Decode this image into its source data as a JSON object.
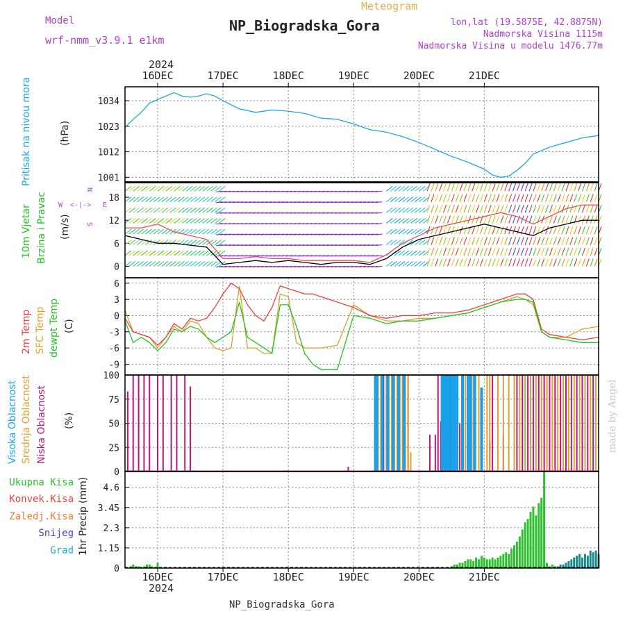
{
  "header": {
    "model_label": "Model",
    "model_name": "wrf-nmm_v3.9.1 e1km",
    "meteogram_label": "Meteogram",
    "station": "NP_Biogradska_Gora",
    "lonlat": "lon,lat (19.5875E, 42.8875N)",
    "elevation": "Nadmorska Visina 1115m",
    "model_elevation": "Nadmorska Visina u modelu 1476.77m",
    "credit": "made by Angel",
    "footer_station": "NP_Biogradska_Gora"
  },
  "colors": {
    "pressure": "#1aa7e8",
    "temp2m": "#e8413a",
    "sfc_temp": "#e0a030",
    "dewpoint": "#22c322",
    "high_cloud": "#1aa0e8",
    "mid_cloud": "#e0a030",
    "low_cloud": "#c0147a",
    "total_precip": "#2ec02e",
    "conv_precip": "#e8413a",
    "frozen_precip": "#f07a30",
    "snow": "#4040e0",
    "graupel": "#20b0c0",
    "title_purple": "#b040d0",
    "title_orange": "#e0b050"
  },
  "chart_data": [
    {
      "type": "line",
      "panel": "pressure",
      "ylabel": "Pritisak na nivou mora",
      "unit": "(hPa)",
      "x_dates": [
        "2024-12-15 12:00",
        "2024-12-21 12:00"
      ],
      "xtick_labels": [
        "16DEC",
        "17DEC",
        "18DEC",
        "19DEC",
        "20DEC",
        "21DEC"
      ],
      "year_label": "2024",
      "yticks": [
        1001,
        1012,
        1023,
        1034
      ],
      "ylim": [
        999,
        1040
      ],
      "grid": true,
      "series": [
        {
          "name": "Pritisak na nivou mora",
          "x_hours": [
            0,
            3,
            6,
            9,
            12,
            15,
            18,
            21,
            24,
            27,
            30,
            33,
            36,
            42,
            48,
            54,
            60,
            66,
            72,
            78,
            84,
            90,
            96,
            102,
            108,
            114,
            120,
            126,
            132,
            135,
            138,
            141,
            144,
            147,
            150,
            156,
            162,
            168,
            174
          ],
          "values": [
            1022.5,
            1026,
            1029,
            1033,
            1034.5,
            1036,
            1037.5,
            1036,
            1035.5,
            1036,
            1037,
            1036,
            1034,
            1030.5,
            1029,
            1030,
            1029.5,
            1028.5,
            1026.5,
            1026,
            1024,
            1021.5,
            1020.5,
            1018.5,
            1016,
            1013,
            1010,
            1007.5,
            1004.5,
            1002,
            1001,
            1001.5,
            1004,
            1007,
            1011,
            1014,
            1016,
            1018,
            1019
          ]
        }
      ]
    },
    {
      "type": "line",
      "panel": "wind",
      "ylabel": "10m Vjetar Brzina i Pravac",
      "unit": "(m/s)",
      "compass_labels": [
        "W",
        "<-|->",
        "E",
        "N",
        "S"
      ],
      "yticks": [
        0,
        6,
        12,
        18
      ],
      "ylim": [
        -3,
        22
      ],
      "grid": true,
      "series": [
        {
          "name": "speed",
          "x_hours": [
            0,
            6,
            12,
            18,
            24,
            30,
            36,
            42,
            48,
            54,
            60,
            66,
            72,
            78,
            84,
            90,
            96,
            102,
            108,
            114,
            120,
            126,
            132,
            138,
            144,
            150,
            156,
            162,
            168,
            174
          ],
          "values": [
            8,
            7,
            6,
            6,
            5.5,
            5,
            0.5,
            1,
            1.5,
            1,
            1.5,
            1,
            0.5,
            1,
            1,
            0.5,
            2,
            5,
            7,
            8,
            9,
            10,
            11,
            10,
            9,
            8,
            10,
            11,
            12,
            12
          ]
        },
        {
          "name": "gust",
          "x_hours": [
            0,
            6,
            12,
            18,
            24,
            30,
            36,
            42,
            48,
            54,
            60,
            66,
            72,
            78,
            84,
            90,
            96,
            102,
            108,
            114,
            120,
            126,
            132,
            138,
            144,
            150,
            156,
            162,
            168,
            174
          ],
          "values": [
            10,
            10,
            11,
            9,
            8,
            7,
            2,
            2,
            2.5,
            2,
            2,
            1.5,
            1.5,
            1.5,
            1.5,
            1,
            3,
            6,
            8,
            10,
            11,
            12,
            13,
            14,
            13,
            11,
            13,
            15,
            16,
            16
          ]
        }
      ]
    },
    {
      "type": "line",
      "panel": "temperature",
      "ylabel": "2m Temp / SFC Temp / dewpt Temp",
      "unit": "(C)",
      "yticks": [
        -9,
        -6,
        -3,
        0,
        3,
        6
      ],
      "ylim": [
        -11,
        7
      ],
      "grid": true,
      "series": [
        {
          "name": "2m Temp",
          "x_hours": [
            0,
            3,
            6,
            9,
            12,
            15,
            18,
            21,
            24,
            27,
            30,
            33,
            36,
            39,
            42,
            45,
            48,
            51,
            54,
            57,
            60,
            63,
            66,
            69,
            72,
            78,
            84,
            90,
            96,
            102,
            108,
            114,
            120,
            126,
            132,
            138,
            144,
            147,
            150,
            153,
            156,
            162,
            168,
            174
          ],
          "values": [
            -0.5,
            -3,
            -3.5,
            -4,
            -5.5,
            -4,
            -1.5,
            -2.5,
            -0.5,
            -1,
            -0.5,
            1.5,
            4,
            6,
            5,
            2,
            0,
            -1,
            1.5,
            5.5,
            5,
            4.5,
            4,
            4,
            3.5,
            2.5,
            1.5,
            0,
            -0.5,
            0,
            0,
            0.5,
            0.5,
            1,
            2,
            3,
            4,
            4,
            3,
            -2.5,
            -3.5,
            -4,
            -4.5,
            -4
          ]
        },
        {
          "name": "SFC Temp",
          "x_hours": [
            0,
            3,
            6,
            9,
            12,
            15,
            18,
            21,
            24,
            27,
            30,
            33,
            36,
            39,
            42,
            45,
            48,
            51,
            54,
            57,
            60,
            63,
            66,
            69,
            72,
            78,
            84,
            90,
            96,
            102,
            108,
            114,
            120,
            126,
            132,
            138,
            144,
            147,
            150,
            153,
            156,
            162,
            168,
            174
          ],
          "values": [
            1,
            -3,
            -3.5,
            -4,
            -6,
            -4,
            -2,
            -3,
            -1,
            -1.5,
            -4,
            -6,
            -6.5,
            -6,
            5.5,
            -6,
            -6,
            -7,
            -7,
            4,
            3.5,
            -5,
            -6,
            -6,
            -6,
            -5.5,
            2,
            0,
            -1,
            -1,
            -0.5,
            -0.5,
            0,
            0.5,
            1.5,
            2.5,
            3.5,
            3,
            2,
            -3,
            -4,
            -4,
            -2.5,
            -2
          ]
        },
        {
          "name": "dewpt Temp",
          "x_hours": [
            0,
            3,
            6,
            9,
            12,
            15,
            18,
            21,
            24,
            27,
            30,
            33,
            36,
            39,
            42,
            45,
            48,
            51,
            54,
            57,
            60,
            63,
            66,
            69,
            72,
            78,
            84,
            90,
            96,
            102,
            108,
            114,
            120,
            126,
            132,
            138,
            144,
            147,
            150,
            153,
            156,
            162,
            168,
            174
          ],
          "values": [
            -1,
            -5,
            -4,
            -5,
            -6.5,
            -5,
            -2.5,
            -3,
            -2,
            -2.5,
            -4,
            -5,
            -4,
            -3,
            2.5,
            -4,
            -5,
            -6,
            -7,
            2,
            2,
            -2,
            -7,
            -9,
            -10,
            -10,
            0,
            -0.5,
            -1.5,
            -1,
            -1,
            -0.5,
            0,
            0.5,
            1.5,
            2.5,
            3,
            3,
            2.5,
            -3,
            -4,
            -4.5,
            -5,
            -5
          ]
        }
      ]
    },
    {
      "type": "bar",
      "panel": "cloud",
      "ylabel": "Visoka Oblacnost / Srednja Oblacnost / Niska Oblacnost",
      "unit": "(%)",
      "yticks": [
        0,
        25,
        50,
        75,
        100
      ],
      "ylim": [
        0,
        100
      ],
      "grid": true,
      "series": [
        {
          "name": "Niska Oblacnost",
          "x_hours": [
            1,
            3,
            5,
            7,
            9,
            12,
            14,
            17,
            19,
            22,
            24,
            82,
            95,
            98,
            99,
            102,
            104,
            112,
            114,
            115,
            116,
            119,
            121,
            123,
            126,
            128,
            131,
            134,
            135,
            139,
            144,
            146,
            148,
            150,
            152,
            154,
            156,
            158,
            160,
            162,
            164,
            166,
            168,
            170,
            172
          ],
          "values": [
            83,
            100,
            100,
            100,
            100,
            100,
            100,
            100,
            100,
            100,
            88,
            5,
            100,
            100,
            100,
            100,
            100,
            38,
            38,
            100,
            52,
            38,
            100,
            50,
            38,
            100,
            32,
            32,
            100,
            38,
            100,
            100,
            100,
            100,
            100,
            100,
            100,
            100,
            100,
            100,
            100,
            100,
            100,
            100,
            100
          ]
        },
        {
          "name": "Srednja Oblacnost",
          "x_hours": [
            92,
            93,
            94,
            96,
            97,
            98,
            99,
            100,
            101,
            102,
            103,
            104,
            105,
            117,
            118,
            120,
            121,
            122,
            125,
            126,
            128,
            130,
            133,
            134,
            137,
            139,
            141,
            143,
            145,
            147,
            149,
            151,
            153,
            155,
            157,
            159,
            161,
            163,
            165,
            167,
            169,
            171,
            173
          ],
          "values": [
            100,
            100,
            100,
            100,
            100,
            100,
            100,
            100,
            100,
            100,
            100,
            100,
            20,
            100,
            100,
            100,
            100,
            100,
            100,
            100,
            100,
            100,
            100,
            100,
            100,
            100,
            100,
            100,
            100,
            100,
            100,
            100,
            100,
            100,
            100,
            100,
            100,
            100,
            100,
            100,
            100,
            100,
            100
          ]
        },
        {
          "name": "Visoka Oblacnost",
          "x_hours": [
            92,
            92.5,
            94.5,
            96.5,
            98.5,
            100.5,
            102.5,
            116.5,
            117,
            118,
            118.5,
            119.5,
            120,
            121,
            122,
            124,
            126,
            127,
            128.5,
            131
          ],
          "values": [
            100,
            100,
            100,
            100,
            100,
            100,
            100,
            100,
            100,
            100,
            100,
            100,
            100,
            100,
            100,
            100,
            100,
            100,
            100,
            87
          ]
        }
      ]
    },
    {
      "type": "bar",
      "panel": "precip",
      "ylabel": "1hr Precip",
      "unit": "(mm)",
      "legend": [
        "Ukupna Kisa",
        "Konvek.Kisa",
        "Zaledj.Kisa",
        "Snijeg",
        "Grad"
      ],
      "yticks": [
        0,
        1.15,
        2.3,
        3.45,
        4.6
      ],
      "ylim": [
        0,
        5.5
      ],
      "grid": true,
      "series": [
        {
          "name": "Ukupna Kisa",
          "x_hours": [
            2,
            3,
            4,
            5,
            7,
            8,
            9,
            10,
            12,
            120,
            121,
            122,
            123,
            124,
            125,
            126,
            127,
            128,
            129,
            130,
            131,
            132,
            133,
            134,
            135,
            136,
            137,
            138,
            139,
            140,
            141,
            142,
            143,
            144,
            145,
            146,
            147,
            148,
            149,
            150,
            151,
            152,
            153,
            154,
            155,
            156,
            157,
            158
          ],
          "values": [
            0.1,
            0.2,
            0.1,
            0.1,
            0.1,
            0.2,
            0.2,
            0.1,
            0.3,
            0.1,
            0.2,
            0.2,
            0.3,
            0.3,
            0.4,
            0.5,
            0.5,
            0.4,
            0.6,
            0.5,
            0.7,
            0.6,
            0.5,
            0.5,
            0.6,
            0.5,
            0.6,
            0.7,
            0.8,
            0.9,
            0.8,
            1.1,
            1.3,
            1.5,
            1.8,
            2.2,
            2.6,
            2.8,
            3.2,
            3.5,
            3.0,
            3.7,
            4.0,
            5.5,
            0.3,
            0.1,
            0.2,
            0.1
          ]
        },
        {
          "name": "Grad",
          "x_hours": [
            159,
            160,
            161,
            162,
            163,
            164,
            165,
            166,
            167,
            168,
            169,
            170,
            171,
            172,
            173,
            174
          ],
          "values": [
            0.1,
            0.2,
            0.2,
            0.3,
            0.4,
            0.5,
            0.6,
            0.7,
            0.8,
            0.6,
            0.8,
            0.7,
            1.0,
            0.9,
            1.0,
            0.8
          ]
        }
      ]
    }
  ]
}
